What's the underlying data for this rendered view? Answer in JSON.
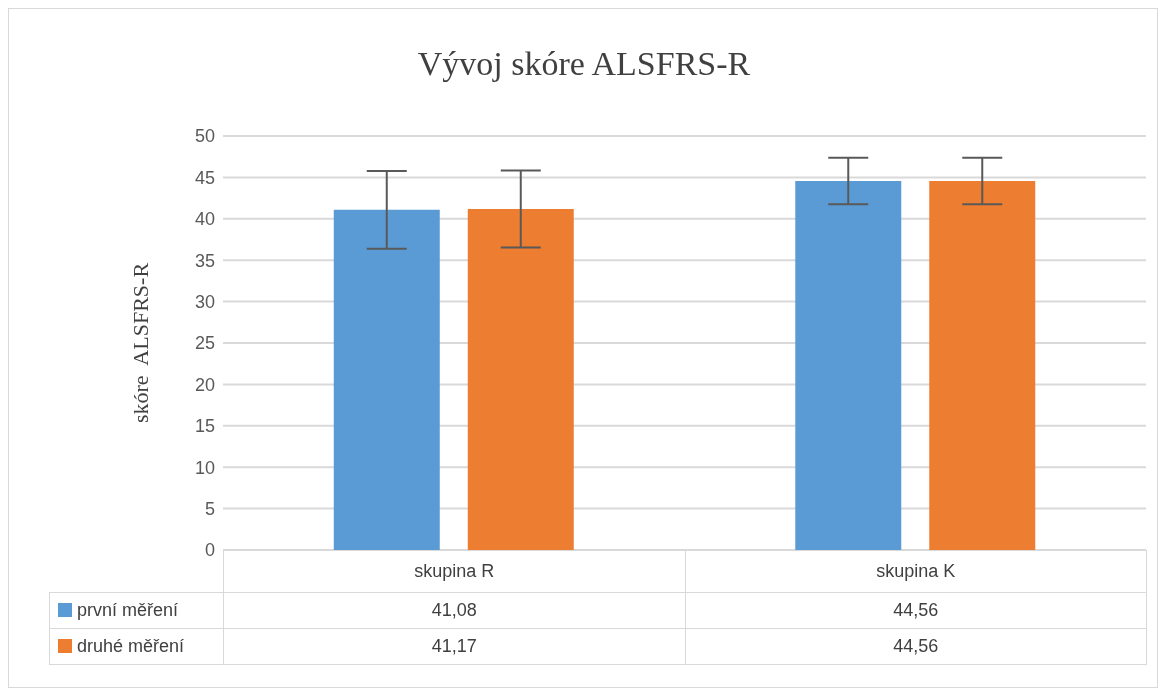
{
  "chart_data": {
    "type": "bar",
    "title": "Vývoj skóre ALSFRS-R",
    "ylabel": "skóre  ALSFRS-R",
    "categories": [
      "skupina R",
      "skupina K"
    ],
    "series": [
      {
        "name": "první měření",
        "color": "#5b9bd5",
        "values": [
          41.08,
          44.56
        ],
        "errors": [
          4.7,
          2.8
        ],
        "value_labels": [
          "41,08",
          "44,56"
        ]
      },
      {
        "name": "druhé měření",
        "color": "#ed7d31",
        "values": [
          41.17,
          44.56
        ],
        "errors": [
          4.65,
          2.8
        ],
        "value_labels": [
          "41,17",
          "44,56"
        ]
      }
    ],
    "ylim": [
      0,
      50
    ],
    "yticks": [
      0,
      5,
      10,
      15,
      20,
      25,
      30,
      35,
      40,
      45,
      50
    ],
    "grid": "y",
    "legend": "bottom"
  }
}
